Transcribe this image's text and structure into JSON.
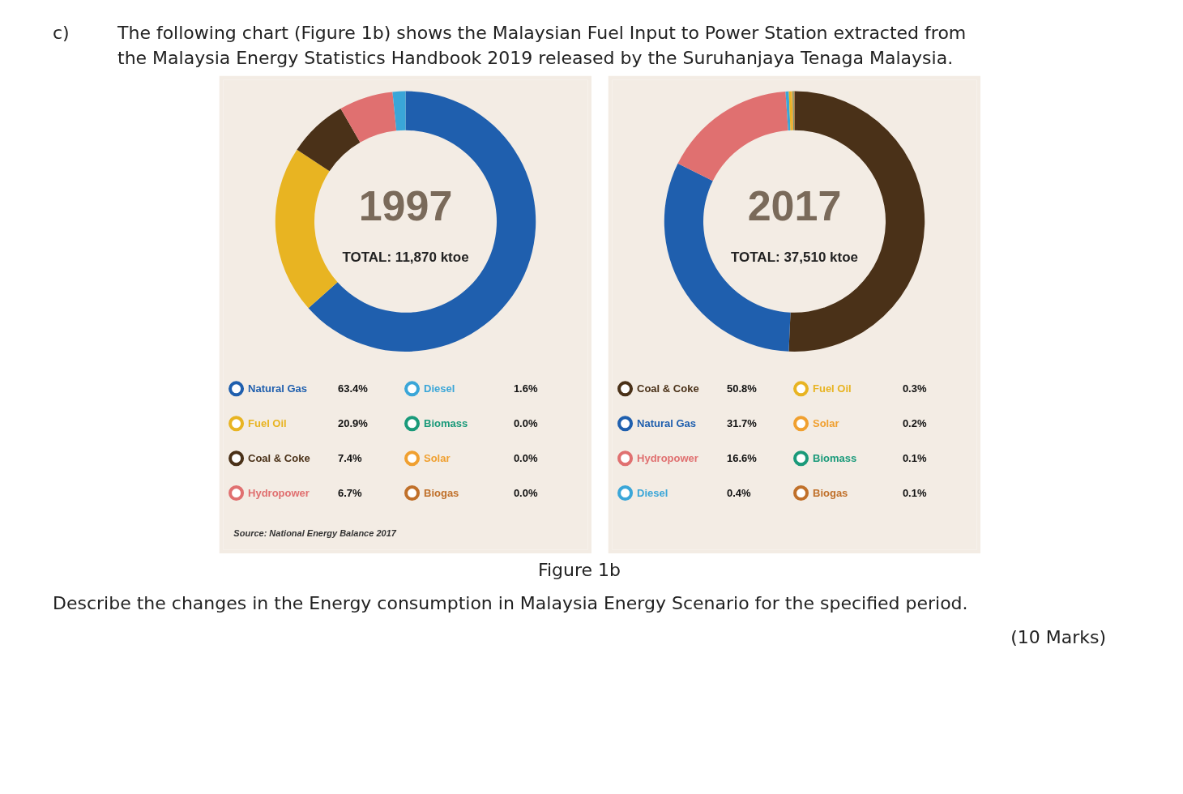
{
  "chart_data": [
    {
      "type": "donut",
      "title": "1997",
      "subtitle": "TOTAL: 11,870 ktoe",
      "categories": [
        "Natural Gas",
        "Fuel Oil",
        "Coal & Coke",
        "Hydropower",
        "Diesel",
        "Biomass",
        "Solar",
        "Biogas"
      ],
      "values": [
        63.4,
        20.9,
        7.4,
        6.7,
        1.6,
        0.0,
        0.0,
        0.0
      ],
      "colors": [
        "#1f5fae",
        "#e8b422",
        "#4a3118",
        "#e07070",
        "#3aa6d8",
        "#1a9a7a",
        "#f0a030",
        "#c0702a"
      ],
      "value_labels": [
        "63.4%",
        "20.9%",
        "7.4%",
        "6.7%",
        "1.6%",
        "0.0%",
        "0.0%",
        "0.0%"
      ],
      "legend": "bottom",
      "annotations": [
        "c)",
        "The following chart (Figure 1b) shows the Malaysian Fuel Input to Power Station extracted from the Malaysia Energy Statistics Handbook 2019 released by the Suruhanjaya Tenaga Malaysia.",
        "Source: National Energy Balance 2017"
      ]
    },
    {
      "type": "donut",
      "title": "2017",
      "subtitle": "TOTAL: 37,510 ktoe",
      "categories": [
        "Coal & Coke",
        "Natural Gas",
        "Hydropower",
        "Diesel",
        "Fuel Oil",
        "Solar",
        "Biomass",
        "Biogas"
      ],
      "values": [
        50.8,
        31.7,
        16.6,
        0.4,
        0.3,
        0.2,
        0.1,
        0.1
      ],
      "colors": [
        "#4a3118",
        "#1f5fae",
        "#e07070",
        "#3aa6d8",
        "#e8b422",
        "#f0a030",
        "#1a9a7a",
        "#c0702a"
      ],
      "value_labels": [
        "50.8%",
        "31.7%",
        "16.6%",
        "0.4%",
        "0.3%",
        "0.2%",
        "0.1%",
        "0.1%"
      ],
      "legend": "bottom",
      "annotations": [
        "Figure 1b",
        "Describe the changes in the Energy consumption in Malaysia Energy Scenario for the specified period.",
        "(10 Marks)"
      ]
    }
  ]
}
